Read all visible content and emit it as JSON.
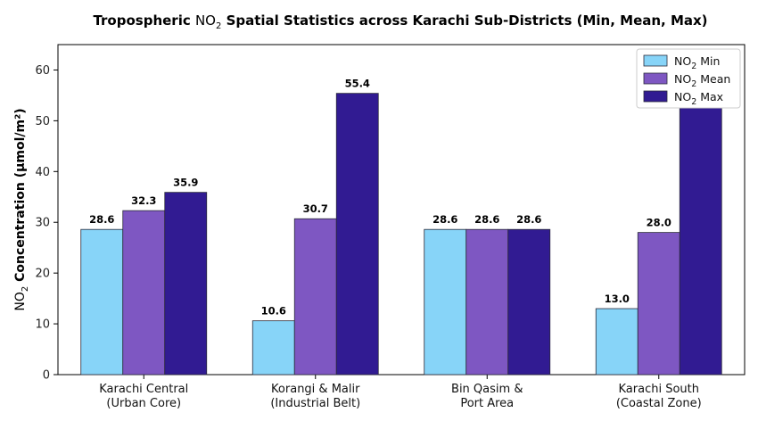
{
  "chart_data": {
    "type": "bar",
    "title": {
      "prefix": "Tropospheric ",
      "chem": "NO",
      "sub": "2",
      "suffix": " Spatial Statistics across Karachi Sub-Districts (Min, Mean, Max)"
    },
    "ylabel": {
      "chem": "NO",
      "sub": "2",
      "bold": " Concentration ",
      "unit": "(μmol/m²)"
    },
    "xlabel": "",
    "ylim": [
      0,
      65
    ],
    "yticks": [
      0,
      10,
      20,
      30,
      40,
      50,
      60
    ],
    "grid": false,
    "legend_position": "top-right",
    "categories": [
      {
        "line1": "Karachi Central",
        "line2": "(Urban Core)"
      },
      {
        "line1": "Korangi & Malir",
        "line2": "(Industrial Belt)"
      },
      {
        "line1": "Bin Qasim &",
        "line2": "Port Area"
      },
      {
        "line1": "Karachi South",
        "line2": "(Coastal Zone)"
      }
    ],
    "series": [
      {
        "chem": "NO",
        "sub": "2",
        "stat": " Min",
        "color": "#87d4f8",
        "values": [
          28.6,
          10.6,
          28.6,
          13.0
        ],
        "labels": [
          "28.6",
          "10.6",
          "28.6",
          "13.0"
        ]
      },
      {
        "chem": "NO",
        "sub": "2",
        "stat": " Mean",
        "color": "#7e57c2",
        "values": [
          32.3,
          30.7,
          28.6,
          28.0
        ],
        "labels": [
          "32.3",
          "30.7",
          "28.6",
          "28.0"
        ]
      },
      {
        "chem": "NO",
        "sub": "2",
        "stat": " Max",
        "color": "#311b92",
        "values": [
          35.9,
          55.4,
          28.6,
          52.5
        ],
        "labels": [
          "35.9",
          "55.4",
          "28.6",
          ""
        ]
      }
    ]
  }
}
